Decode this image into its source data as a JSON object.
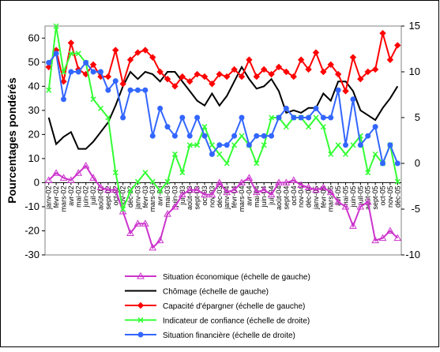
{
  "chart_data": {
    "type": "line",
    "y_label": "Pourcentages pondérés",
    "categories": [
      "janv-02",
      "févr-02",
      "mars-02",
      "avr-02",
      "mai-02",
      "juin-02",
      "juil-02",
      "août-02",
      "sept-02",
      "oct-02",
      "nov-02",
      "déc-02",
      "janv-03",
      "févr-03",
      "mars-03",
      "avr-03",
      "mai-03",
      "juin-03",
      "juil-03",
      "août-03",
      "sept-03",
      "oct-03",
      "nov-03",
      "déc-03",
      "janv-04",
      "févr-04",
      "mars-04",
      "avr-04",
      "mai-04",
      "juin-04",
      "juil-04",
      "août-04",
      "sept-04",
      "oct-04",
      "nov-04",
      "déc-04",
      "janv-05",
      "févr-05",
      "mars-05",
      "avr-05",
      "mai-05",
      "juin-05",
      "juil-05",
      "août-05",
      "sept-05",
      "oct-05",
      "nov-05",
      "déc-05"
    ],
    "ylim": [
      -30,
      65
    ],
    "yticks": [
      -30,
      -20,
      -10,
      0,
      10,
      20,
      30,
      40,
      50,
      60
    ],
    "y2lim": [
      -10,
      15
    ],
    "y2ticks": [
      -10,
      -5,
      0,
      5,
      10,
      15
    ],
    "series": [
      {
        "name": "Situation économique (échelle de gauche)",
        "color": "#cc33cc",
        "marker": "triangle",
        "values": [
          1,
          4,
          2,
          1,
          4,
          7,
          2,
          -2,
          -3,
          -3,
          -12,
          -21,
          -17,
          -17,
          -27,
          -24,
          -13,
          -10,
          -5,
          -3,
          -3,
          -5,
          -5,
          0,
          -4,
          -3,
          0,
          2,
          -4,
          -3,
          -5,
          0,
          0,
          1,
          -1,
          -2,
          -3,
          -2,
          -4,
          -8,
          -10,
          -18,
          -10,
          -8,
          -24,
          -23,
          -20,
          -23
        ]
      },
      {
        "name": "Chômage (échelle de gauche)",
        "color": "#000000",
        "marker": "none",
        "values": [
          27,
          16,
          19,
          21,
          14,
          14,
          17,
          21,
          25,
          32,
          40,
          46,
          43,
          46,
          45,
          42,
          46,
          46,
          42,
          38,
          34,
          32,
          37,
          32,
          36,
          42,
          48,
          43,
          39,
          40,
          43,
          38,
          29,
          30,
          29,
          31,
          31,
          37,
          34,
          42,
          42,
          38,
          30,
          28,
          26,
          31,
          35,
          40
        ]
      },
      {
        "name": "Capacité d'épargner (échelle de gauche)",
        "color": "#ff0000",
        "marker": "diamond",
        "values": [
          48,
          55,
          42,
          58,
          47,
          45,
          49,
          44,
          44,
          55,
          41,
          51,
          54,
          55,
          52,
          46,
          43,
          40,
          44,
          42,
          45,
          44,
          41,
          45,
          44,
          47,
          44,
          51,
          44,
          47,
          45,
          48,
          46,
          44,
          51,
          47,
          54,
          46,
          49,
          45,
          38,
          52,
          43,
          46,
          47,
          62,
          51,
          57
        ]
      },
      {
        "name": "Indicateur de confiance (échelle de droite)",
        "color": "#33ff33",
        "marker": "x",
        "axis": "y2",
        "values": [
          8,
          15,
          10,
          12,
          12,
          11,
          7,
          6,
          5,
          -1,
          -5,
          -3,
          -2,
          -1,
          -2,
          -3,
          -2,
          1,
          -1,
          2,
          2,
          4,
          2,
          1,
          0,
          2,
          3,
          2,
          0,
          2,
          5,
          5,
          4,
          5,
          5,
          4,
          5,
          4,
          1,
          2,
          1,
          2,
          3,
          -1,
          1,
          0,
          2,
          -2
        ]
      },
      {
        "name": "Situation financière (échelle de droite)",
        "color": "#3366ff",
        "marker": "circle",
        "axis": "y2",
        "values": [
          11,
          12,
          7,
          10,
          10,
          11,
          10,
          10,
          8,
          9,
          5,
          8,
          8,
          8,
          3,
          6,
          4,
          3,
          5,
          3,
          5,
          3,
          1,
          2,
          2,
          3,
          5,
          2,
          3,
          3,
          3,
          5,
          6,
          5,
          5,
          5,
          6,
          5,
          5,
          8,
          2,
          7,
          2,
          3,
          4,
          0,
          2,
          0
        ]
      }
    ]
  }
}
